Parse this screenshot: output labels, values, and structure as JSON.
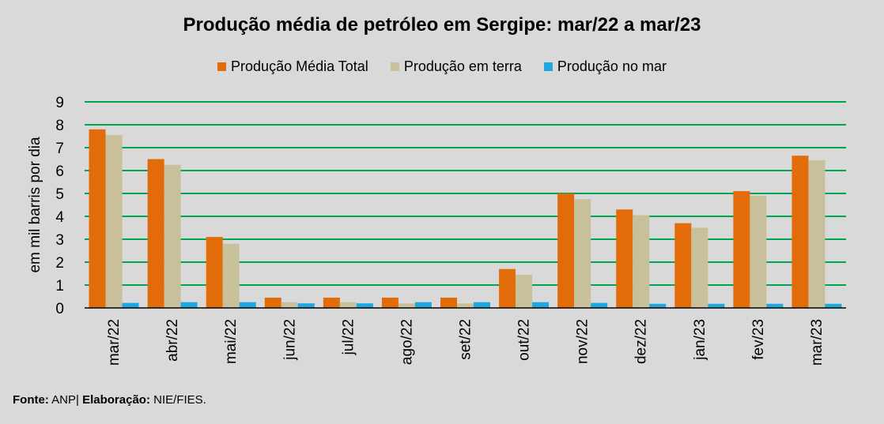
{
  "chart_data": {
    "type": "bar",
    "title": "Produção média de petróleo em Sergipe: mar/22 a mar/23",
    "ylabel": "em mil barris por dia",
    "xlabel": "",
    "ylim": [
      0,
      9
    ],
    "yticks": [
      0,
      1,
      2,
      3,
      4,
      5,
      6,
      7,
      8,
      9
    ],
    "grid": true,
    "legend_position": "top",
    "categories": [
      "mar/22",
      "abr/22",
      "mai/22",
      "jun/22",
      "jul/22",
      "ago/22",
      "set/22",
      "out/22",
      "nov/22",
      "dez/22",
      "jan/23",
      "fev/23",
      "mar/23"
    ],
    "series": [
      {
        "name": "Produção Média Total",
        "color": "#e36c0a",
        "values": [
          7.8,
          6.5,
          3.1,
          0.45,
          0.45,
          0.45,
          0.45,
          1.7,
          5.0,
          4.3,
          3.7,
          5.1,
          6.65
        ]
      },
      {
        "name": "Produção em terra",
        "color": "#c8c09b",
        "values": [
          7.55,
          6.25,
          2.8,
          0.25,
          0.25,
          0.2,
          0.2,
          1.45,
          4.75,
          4.05,
          3.5,
          4.9,
          6.45
        ]
      },
      {
        "name": "Produção no mar",
        "color": "#1fa7e0",
        "values": [
          0.22,
          0.25,
          0.25,
          0.2,
          0.2,
          0.25,
          0.25,
          0.25,
          0.22,
          0.18,
          0.18,
          0.18,
          0.18
        ]
      }
    ]
  },
  "footer": {
    "fonte_label": "Fonte:",
    "fonte_value": "ANP|",
    "elaboracao_label": "Elaboração:",
    "elaboracao_value": "NIE/FIES."
  },
  "colors": {
    "background": "#d9d9d9",
    "gridline": "#00a650",
    "axis": "#000000"
  }
}
